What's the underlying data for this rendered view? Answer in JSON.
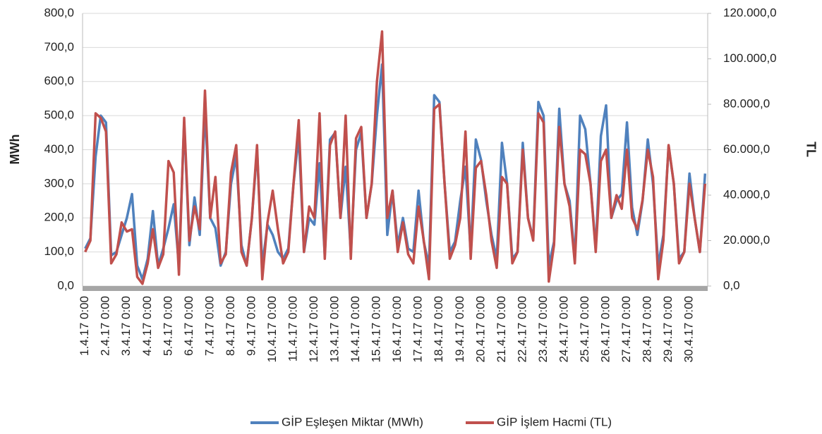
{
  "chart_data": {
    "type": "line",
    "y_label": "MWh",
    "y2_label": "TL",
    "categories": [
      "1.4.17 0:00",
      null,
      null,
      null,
      "2.4.17 0:00",
      null,
      null,
      null,
      "3.4.17 0:00",
      null,
      null,
      null,
      "4.4.17 0:00",
      null,
      null,
      null,
      "5.4.17 0:00",
      null,
      null,
      null,
      "6.4.17 0:00",
      null,
      null,
      null,
      "7.4.17 0:00",
      null,
      null,
      null,
      "8.4.17 0:00",
      null,
      null,
      null,
      "9.4.17 0:00",
      null,
      null,
      null,
      "10.4.17 0:00",
      null,
      null,
      null,
      "11.4.17 0:00",
      null,
      null,
      null,
      "12.4.17 0:00",
      null,
      null,
      null,
      "13.4.17 0:00",
      null,
      null,
      null,
      "14.4.17 0:00",
      null,
      null,
      null,
      "15.4.17 0:00",
      null,
      null,
      null,
      "16.4.17 0:00",
      null,
      null,
      null,
      "17.4.17 0:00",
      null,
      null,
      null,
      "18.4.17 0:00",
      null,
      null,
      null,
      "19.4.17 0:00",
      null,
      null,
      null,
      "20.4.17 0:00",
      null,
      null,
      null,
      "21.4.17 0:00",
      null,
      null,
      null,
      "22.4.17 0:00",
      null,
      null,
      null,
      "23.4.17 0:00",
      null,
      null,
      null,
      "24.4.17 0:00",
      null,
      null,
      null,
      "25.4.17 0:00",
      null,
      null,
      null,
      "26.4.17 0:00",
      null,
      null,
      null,
      "27.4.17 0:00",
      null,
      null,
      null,
      "28.4.17 0:00",
      null,
      null,
      null,
      "29.4.17 0:00",
      null,
      null,
      null,
      "30.4.17 0:00",
      null,
      null,
      null
    ],
    "series": [
      {
        "name": "GİP Eşleşen Miktar (MWh)",
        "color": "#4f81bd",
        "axis": "y",
        "values": [
          110,
          140,
          380,
          500,
          480,
          90,
          100,
          150,
          200,
          270,
          60,
          20,
          80,
          220,
          60,
          110,
          170,
          240,
          60,
          480,
          120,
          260,
          150,
          520,
          200,
          170,
          60,
          100,
          300,
          380,
          120,
          60,
          200,
          400,
          60,
          180,
          150,
          100,
          80,
          110,
          300,
          440,
          100,
          200,
          180,
          360,
          90,
          430,
          450,
          200,
          350,
          100,
          400,
          450,
          200,
          300,
          500,
          650,
          150,
          280,
          120,
          200,
          110,
          100,
          280,
          130,
          60,
          560,
          540,
          300,
          100,
          130,
          250,
          350,
          100,
          430,
          370,
          250,
          150,
          80,
          420,
          300,
          80,
          100,
          420,
          200,
          140,
          540,
          500,
          60,
          130,
          520,
          300,
          250,
          80,
          500,
          460,
          300,
          110,
          440,
          530,
          200,
          250,
          270,
          480,
          230,
          150,
          250,
          430,
          300,
          60,
          150,
          410,
          300,
          80,
          100,
          330,
          200,
          100,
          330
        ]
      },
      {
        "name": "GİP İşlem Hacmi (TL)",
        "color": "#c0504d",
        "axis": "y2",
        "values": [
          15000,
          20000,
          76000,
          74000,
          68000,
          10000,
          14000,
          28000,
          24000,
          25000,
          4000,
          1000,
          10000,
          25000,
          8000,
          14000,
          55000,
          50000,
          5000,
          74000,
          20000,
          35000,
          25000,
          86000,
          30000,
          48000,
          10000,
          14000,
          50000,
          62000,
          15000,
          9000,
          30000,
          62000,
          3000,
          28000,
          42000,
          25000,
          10000,
          15000,
          45000,
          73000,
          15000,
          35000,
          30000,
          76000,
          12000,
          62000,
          68000,
          30000,
          75000,
          12000,
          65000,
          70000,
          30000,
          45000,
          90000,
          112000,
          30000,
          42000,
          15000,
          28000,
          14000,
          10000,
          35000,
          20000,
          3000,
          78000,
          80000,
          45000,
          12000,
          18000,
          30000,
          68000,
          12000,
          52000,
          55000,
          40000,
          20000,
          8000,
          48000,
          45000,
          10000,
          15000,
          60000,
          30000,
          20000,
          76000,
          72000,
          2000,
          18000,
          70000,
          45000,
          35000,
          10000,
          60000,
          58000,
          45000,
          15000,
          55000,
          60000,
          30000,
          40000,
          34000,
          60000,
          30000,
          25000,
          38000,
          60000,
          48000,
          3000,
          20000,
          62000,
          45000,
          10000,
          15000,
          45000,
          30000,
          15000,
          45000
        ]
      }
    ],
    "ylim": [
      0,
      800
    ],
    "yticks": [
      {
        "value": 0,
        "label": "0,0"
      },
      {
        "value": 100,
        "label": "100,0"
      },
      {
        "value": 200,
        "label": "200,0"
      },
      {
        "value": 300,
        "label": "300,0"
      },
      {
        "value": 400,
        "label": "400,0"
      },
      {
        "value": 500,
        "label": "500,0"
      },
      {
        "value": 600,
        "label": "600,0"
      },
      {
        "value": 700,
        "label": "700,0"
      },
      {
        "value": 800,
        "label": "800,0"
      }
    ],
    "y2lim": [
      0,
      120000
    ],
    "y2ticks": [
      {
        "value": 0,
        "label": "0,0"
      },
      {
        "value": 20000,
        "label": "20.000,0"
      },
      {
        "value": 40000,
        "label": "40.000,0"
      },
      {
        "value": 60000,
        "label": "60.000,0"
      },
      {
        "value": 80000,
        "label": "80.000,0"
      },
      {
        "value": 100000,
        "label": "100.000,0"
      },
      {
        "value": 120000,
        "label": "120.000,0"
      }
    ],
    "grid": true,
    "legend": "bottom"
  }
}
